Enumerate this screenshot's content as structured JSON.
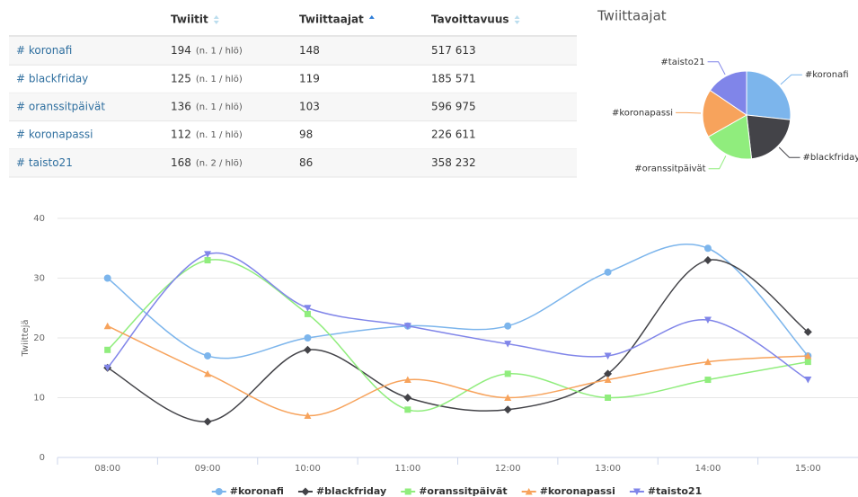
{
  "table": {
    "headers": [
      "Twiitit",
      "Twiittaajat",
      "Tavoittavuus"
    ],
    "rows": [
      [
        "# koronafi",
        "194",
        "(n. 1 / hlö)",
        "148",
        "517 613"
      ],
      [
        "# blackfriday",
        "125",
        "(n. 1 / hlö)",
        "119",
        "185 571"
      ],
      [
        "# oranssitpäivät",
        "136",
        "(n. 1 / hlö)",
        "103",
        "596 975"
      ],
      [
        "# koronapassi",
        "112",
        "(n. 1 / hlö)",
        "98",
        "226 611"
      ],
      [
        "# taisto21",
        "168",
        "(n. 2 / hlö)",
        "86",
        "358 232"
      ]
    ]
  },
  "chart_data": [
    {
      "type": "pie",
      "title": "Twiittaajat",
      "categories": [
        "#koronafi",
        "#blackfriday",
        "#oranssitpäivät",
        "#koronapassi",
        "#taisto21"
      ],
      "values": [
        148,
        119,
        103,
        98,
        86
      ],
      "colors": [
        "#7cb5ec",
        "#434348",
        "#90ed7d",
        "#f7a35c",
        "#8085e9"
      ]
    },
    {
      "type": "line",
      "y_label": "Twiittejä",
      "categories": [
        "08:00",
        "09:00",
        "10:00",
        "11:00",
        "12:00",
        "13:00",
        "14:00",
        "15:00"
      ],
      "ylim": [
        0,
        40
      ],
      "yticks": [
        0,
        10,
        20,
        30,
        40
      ],
      "grid": true,
      "smooth": true,
      "legend": "bottom",
      "series": [
        {
          "name": "#koronafi",
          "color": "#7cb5ec",
          "symbol": "circle",
          "values": [
            30,
            17,
            20,
            22,
            22,
            31,
            35,
            17
          ]
        },
        {
          "name": "#blackfriday",
          "color": "#434348",
          "symbol": "diamond",
          "values": [
            15,
            6,
            18,
            10,
            8,
            14,
            33,
            21
          ]
        },
        {
          "name": "#oranssitpäivät",
          "color": "#90ed7d",
          "symbol": "square",
          "values": [
            18,
            33,
            24,
            8,
            14,
            10,
            13,
            16
          ]
        },
        {
          "name": "#koronapassi",
          "color": "#f7a35c",
          "symbol": "triangle",
          "values": [
            22,
            14,
            7,
            13,
            10,
            13,
            16,
            17
          ]
        },
        {
          "name": "#taisto21",
          "color": "#8085e9",
          "symbol": "triangle-down",
          "values": [
            15,
            34,
            25,
            22,
            19,
            17,
            23,
            13
          ]
        }
      ]
    }
  ]
}
